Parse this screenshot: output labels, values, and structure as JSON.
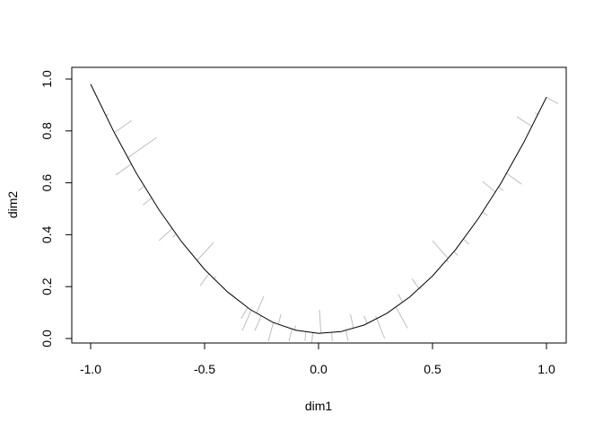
{
  "chart_data": {
    "type": "line",
    "title": "",
    "xlabel": "dim1",
    "ylabel": "dim2",
    "xlim": [
      -1.08,
      1.08
    ],
    "ylim": [
      -0.02,
      1.04
    ],
    "xticks": [
      "-1.0",
      "-0.5",
      "0.0",
      "0.5",
      "1.0"
    ],
    "xtick_values": [
      -1.0,
      -0.5,
      0.0,
      0.5,
      1.0
    ],
    "yticks": [
      "0.0",
      "0.2",
      "0.4",
      "0.6",
      "0.8",
      "1.0"
    ],
    "ytick_values": [
      0.0,
      0.2,
      0.4,
      0.6,
      0.8,
      1.0
    ],
    "grid": false,
    "curve_color": "#000000",
    "projection_color": "#bebebe",
    "curve": [
      [
        -1.0,
        0.98
      ],
      [
        -0.9,
        0.8
      ],
      [
        -0.8,
        0.638
      ],
      [
        -0.7,
        0.496
      ],
      [
        -0.6,
        0.372
      ],
      [
        -0.5,
        0.266
      ],
      [
        -0.4,
        0.18
      ],
      [
        -0.3,
        0.112
      ],
      [
        -0.2,
        0.062
      ],
      [
        -0.1,
        0.032
      ],
      [
        0.0,
        0.02
      ],
      [
        0.1,
        0.027
      ],
      [
        0.2,
        0.052
      ],
      [
        0.3,
        0.097
      ],
      [
        0.4,
        0.16
      ],
      [
        0.5,
        0.241
      ],
      [
        0.6,
        0.341
      ],
      [
        0.7,
        0.461
      ],
      [
        0.8,
        0.598
      ],
      [
        0.9,
        0.755
      ],
      [
        1.0,
        0.93
      ]
    ],
    "points": [
      [
        -0.92,
        0.865
      ],
      [
        -0.82,
        0.84
      ],
      [
        -0.71,
        0.775
      ],
      [
        -0.89,
        0.63
      ],
      [
        -0.79,
        0.57
      ],
      [
        -0.77,
        0.515
      ],
      [
        -0.7,
        0.377
      ],
      [
        -0.64,
        0.39
      ],
      [
        -0.46,
        0.37
      ],
      [
        -0.52,
        0.204
      ],
      [
        -0.45,
        0.24
      ],
      [
        -0.53,
        0.3
      ],
      [
        -0.34,
        0.076
      ],
      [
        -0.335,
        0.03
      ],
      [
        -0.24,
        0.163
      ],
      [
        -0.28,
        0.03
      ],
      [
        -0.22,
        -0.01
      ],
      [
        -0.165,
        0.093
      ],
      [
        -0.13,
        -0.01
      ],
      [
        -0.1,
        0.05
      ],
      [
        -0.06,
        -0.01
      ],
      [
        0.004,
        0.11
      ],
      [
        -0.03,
        -0.017
      ],
      [
        0.06,
        -0.01
      ],
      [
        0.13,
        -0.01
      ],
      [
        0.14,
        0.093
      ],
      [
        0.2,
        0.087
      ],
      [
        0.29,
        0.0
      ],
      [
        0.25,
        0.087
      ],
      [
        0.39,
        0.04
      ],
      [
        0.35,
        0.17
      ],
      [
        0.45,
        0.19
      ],
      [
        0.41,
        0.23
      ],
      [
        0.5,
        0.377
      ],
      [
        0.61,
        0.32
      ],
      [
        0.57,
        0.294
      ],
      [
        0.66,
        0.363
      ],
      [
        0.74,
        0.474
      ],
      [
        0.81,
        0.57
      ],
      [
        0.89,
        0.595
      ],
      [
        0.72,
        0.605
      ],
      [
        0.87,
        0.855
      ],
      [
        0.95,
        0.87
      ],
      [
        1.05,
        0.905
      ]
    ]
  }
}
